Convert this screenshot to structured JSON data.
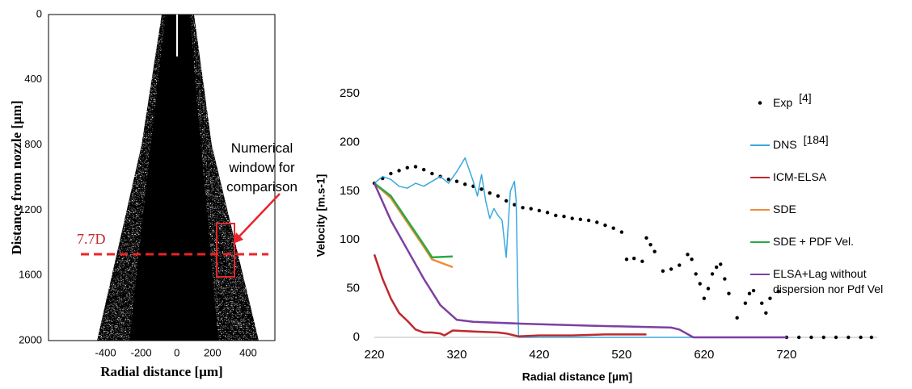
{
  "chart_data": [
    {
      "type": "image",
      "x_label": "Radial distance [µm]",
      "y_label": "Distance from nozzle [µm]",
      "xlim": [
        -720,
        550
      ],
      "xticks": [
        -400,
        -200,
        0,
        200,
        400
      ],
      "ylim": [
        2000,
        0
      ],
      "yticks": [
        0,
        400,
        800,
        1200,
        1600,
        2000
      ],
      "annotations": [
        "7.7D",
        "Numerical window for comparison"
      ]
    },
    {
      "type": "line",
      "x_label": "Radial distance [µm]",
      "y_label": "Velocity [m.s-1]",
      "xlim": [
        220,
        830
      ],
      "xticks": [
        220,
        320,
        420,
        520,
        620,
        720
      ],
      "ylim": [
        0,
        250
      ],
      "yticks": [
        0,
        50,
        100,
        150,
        200,
        250
      ],
      "grid": false,
      "series": [
        {
          "name": "Exp",
          "ref": "[4]",
          "color": "#000000",
          "style": "dots",
          "x": [
            220,
            230,
            240,
            250,
            260,
            270,
            280,
            290,
            300,
            310,
            320,
            330,
            340,
            350,
            360,
            370,
            380,
            390,
            400,
            410,
            420,
            430,
            440,
            450,
            460,
            470,
            480,
            490,
            500,
            510,
            520,
            null,
            526,
            535,
            545,
            550,
            555,
            560,
            570,
            580,
            590,
            600,
            605,
            610,
            615,
            620,
            625,
            630,
            635,
            640,
            645,
            650,
            660,
            670,
            675,
            680,
            690,
            695,
            700,
            710,
            null,
            720,
            735,
            750,
            765,
            780,
            795,
            810,
            823
          ],
          "values": [
            158,
            163,
            168,
            171,
            174,
            175,
            172,
            168,
            165,
            162,
            160,
            157,
            155,
            152,
            148,
            145,
            140,
            136,
            133,
            132,
            130,
            128,
            125,
            124,
            122,
            121,
            120,
            118,
            115,
            112,
            108,
            null,
            80,
            81,
            78,
            102,
            95,
            88,
            68,
            70,
            74,
            85,
            80,
            65,
            55,
            40,
            50,
            65,
            72,
            75,
            60,
            45,
            20,
            35,
            45,
            48,
            35,
            25,
            40,
            47,
            null,
            0,
            0,
            0,
            0,
            0,
            0,
            0,
            0
          ]
        },
        {
          "name": "DNS",
          "ref": "[184]",
          "color": "#3aa9dc",
          "style": "line",
          "x": [
            220,
            230,
            240,
            250,
            260,
            270,
            280,
            290,
            300,
            310,
            320,
            330,
            340,
            345,
            350,
            355,
            360,
            365,
            370,
            375,
            380,
            385,
            390,
            392,
            395,
            720
          ],
          "values": [
            158,
            165,
            162,
            155,
            153,
            158,
            155,
            160,
            165,
            158,
            170,
            184,
            160,
            145,
            167,
            140,
            122,
            132,
            125,
            120,
            82,
            150,
            160,
            140,
            0,
            0
          ]
        },
        {
          "name": "ICM-ELSA",
          "color": "#c0282d",
          "style": "line",
          "x": [
            220,
            230,
            240,
            250,
            260,
            270,
            280,
            290,
            300,
            305,
            315,
            340,
            370,
            380,
            395,
            420,
            460,
            500,
            550
          ],
          "values": [
            85,
            60,
            40,
            25,
            17,
            8,
            5,
            5,
            4,
            2,
            7,
            6,
            5,
            4,
            1,
            2,
            2,
            3,
            3
          ]
        },
        {
          "name": "SDE",
          "color": "#f08c3c",
          "style": "line",
          "x": [
            220,
            240,
            260,
            280,
            290,
            315
          ],
          "values": [
            158,
            143,
            118,
            93,
            80,
            72
          ]
        },
        {
          "name": "SDE + PDF Vel.",
          "color": "#2ca843",
          "style": "line",
          "x": [
            220,
            240,
            260,
            280,
            290,
            315
          ],
          "values": [
            158,
            145,
            120,
            95,
            82,
            83
          ]
        },
        {
          "name": "ELSA+Lag without dispersion nor Pdf Vel",
          "color": "#7d3fa3",
          "style": "line",
          "x": [
            220,
            240,
            260,
            280,
            300,
            320,
            340,
            400,
            480,
            580,
            590,
            607,
            720
          ],
          "values": [
            158,
            120,
            90,
            60,
            33,
            18,
            16,
            14,
            12,
            10,
            8,
            0,
            0
          ]
        }
      ]
    }
  ]
}
